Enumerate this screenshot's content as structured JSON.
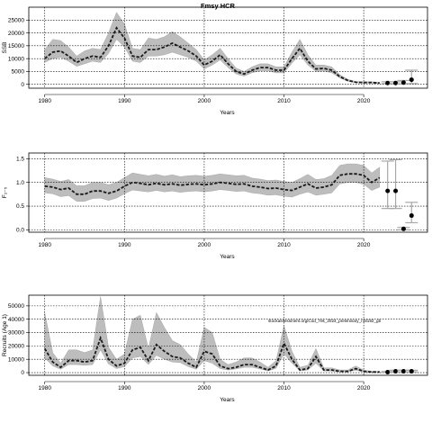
{
  "figure": {
    "title": "Fmsy HCR",
    "watermark": "stockassessment.org/Cod_7ek_2024_preliminary_r18192_gb"
  },
  "chart_data": [
    {
      "type": "line",
      "name": "ssb",
      "ylabel": "SSB",
      "xlabel": "Years",
      "xlim": [
        1978,
        2028
      ],
      "ylim": [
        -1500,
        30000
      ],
      "xticks": [
        1980,
        1990,
        2000,
        2010,
        2020
      ],
      "yticks": [
        0,
        5000,
        10000,
        15000,
        20000,
        25000
      ],
      "grid": true,
      "years": [
        1980,
        1981,
        1982,
        1983,
        1984,
        1985,
        1986,
        1987,
        1988,
        1989,
        1990,
        1991,
        1992,
        1993,
        1994,
        1995,
        1996,
        1997,
        1998,
        1999,
        2000,
        2001,
        2002,
        2003,
        2004,
        2005,
        2006,
        2007,
        2008,
        2009,
        2010,
        2011,
        2012,
        2013,
        2014,
        2015,
        2016,
        2017,
        2018,
        2019,
        2020,
        2021,
        2022
      ],
      "values": [
        10000,
        12500,
        13000,
        11000,
        8500,
        10000,
        11000,
        10500,
        15000,
        22000,
        18000,
        11000,
        10500,
        13500,
        13500,
        14500,
        16000,
        14500,
        13000,
        11000,
        7500,
        9000,
        11500,
        8000,
        5000,
        4000,
        5500,
        6500,
        6500,
        5500,
        5500,
        10000,
        14000,
        9000,
        6000,
        6200,
        5500,
        3000,
        1500,
        800,
        700,
        700,
        500
      ],
      "lower": [
        8500,
        10000,
        10500,
        9000,
        7000,
        8000,
        9000,
        8500,
        12000,
        17500,
        14500,
        9000,
        8500,
        11000,
        11000,
        11500,
        12500,
        11500,
        10500,
        9000,
        6000,
        7500,
        9500,
        6500,
        4000,
        3200,
        4500,
        5300,
        5300,
        4500,
        4500,
        8200,
        11500,
        7500,
        5000,
        5200,
        4500,
        2500,
        1200,
        600,
        500,
        500,
        300
      ],
      "upper": [
        13500,
        17500,
        17000,
        14500,
        11000,
        13000,
        14000,
        13500,
        20000,
        28000,
        23500,
        14000,
        13500,
        18000,
        17500,
        18500,
        20500,
        18500,
        16000,
        13500,
        9500,
        11500,
        14000,
        10000,
        6300,
        5000,
        6800,
        8000,
        8000,
        6800,
        6800,
        12500,
        17500,
        11500,
        7500,
        7500,
        6800,
        3800,
        2000,
        1100,
        1000,
        1000,
        800
      ],
      "forecast": {
        "years": [
          2023,
          2024,
          2025,
          2026
        ],
        "values": [
          500,
          500,
          700,
          1800
        ],
        "lower": [
          300,
          200,
          200,
          300
        ],
        "upper": [
          1000,
          1000,
          1500,
          5500
        ]
      }
    },
    {
      "type": "line",
      "name": "fbar",
      "ylabel": "F₂₋₅",
      "xlabel": "Years",
      "xlim": [
        1978,
        2028
      ],
      "ylim": [
        -0.05,
        1.62
      ],
      "xticks": [
        1980,
        1990,
        2000,
        2010,
        2020
      ],
      "yticks": [
        0.0,
        0.5,
        1.0,
        1.5
      ],
      "ytick_labels": [
        "0.0",
        "0.5",
        "1.0",
        "1.5"
      ],
      "grid": true,
      "years": [
        1980,
        1981,
        1982,
        1983,
        1984,
        1985,
        1986,
        1987,
        1988,
        1989,
        1990,
        1991,
        1992,
        1993,
        1994,
        1995,
        1996,
        1997,
        1998,
        1999,
        2000,
        2001,
        2002,
        2003,
        2004,
        2005,
        2006,
        2007,
        2008,
        2009,
        2010,
        2011,
        2012,
        2013,
        2014,
        2015,
        2016,
        2017,
        2018,
        2019,
        2020,
        2021,
        2022
      ],
      "values": [
        0.92,
        0.9,
        0.85,
        0.88,
        0.75,
        0.75,
        0.82,
        0.82,
        0.77,
        0.82,
        0.92,
        1.0,
        0.98,
        0.95,
        0.98,
        0.95,
        0.97,
        0.94,
        0.96,
        0.97,
        0.95,
        0.97,
        1.0,
        0.98,
        0.96,
        0.97,
        0.92,
        0.9,
        0.87,
        0.88,
        0.85,
        0.83,
        0.9,
        0.97,
        0.88,
        0.9,
        0.95,
        1.15,
        1.18,
        1.18,
        1.15,
        1.0,
        1.1
      ],
      "lower": [
        0.78,
        0.76,
        0.7,
        0.72,
        0.6,
        0.6,
        0.66,
        0.67,
        0.62,
        0.67,
        0.76,
        0.84,
        0.82,
        0.8,
        0.83,
        0.8,
        0.82,
        0.79,
        0.81,
        0.82,
        0.8,
        0.82,
        0.85,
        0.83,
        0.81,
        0.82,
        0.78,
        0.76,
        0.73,
        0.74,
        0.71,
        0.69,
        0.75,
        0.8,
        0.73,
        0.75,
        0.78,
        0.97,
        1.0,
        1.0,
        0.96,
        0.83,
        0.9
      ],
      "upper": [
        1.1,
        1.07,
        1.02,
        1.06,
        0.93,
        0.93,
        1.0,
        1.0,
        0.95,
        1.0,
        1.1,
        1.2,
        1.17,
        1.14,
        1.17,
        1.13,
        1.16,
        1.12,
        1.14,
        1.15,
        1.13,
        1.15,
        1.18,
        1.16,
        1.14,
        1.15,
        1.09,
        1.07,
        1.04,
        1.05,
        1.02,
        1.0,
        1.08,
        1.17,
        1.06,
        1.08,
        1.15,
        1.36,
        1.39,
        1.39,
        1.36,
        1.2,
        1.32
      ],
      "forecast": {
        "years": [
          2023,
          2024,
          2025,
          2026
        ],
        "values": [
          0.82,
          0.82,
          0.02,
          0.3
        ],
        "lower": [
          0.45,
          0.45,
          0.0,
          0.15
        ],
        "upper": [
          1.45,
          1.48,
          0.05,
          0.58
        ]
      }
    },
    {
      "type": "line",
      "name": "recruitment",
      "ylabel": "Recruits (Age 1)",
      "xlabel": "Years",
      "xlim": [
        1978,
        2028
      ],
      "ylim": [
        -2000,
        58000
      ],
      "xticks": [
        1980,
        1990,
        2000,
        2010,
        2020
      ],
      "yticks": [
        0,
        10000,
        20000,
        30000,
        40000,
        50000
      ],
      "grid": true,
      "years": [
        1980,
        1981,
        1982,
        1983,
        1984,
        1985,
        1986,
        1987,
        1988,
        1989,
        1990,
        1991,
        1992,
        1993,
        1994,
        1995,
        1996,
        1997,
        1998,
        1999,
        2000,
        2001,
        2002,
        2003,
        2004,
        2005,
        2006,
        2007,
        2008,
        2009,
        2010,
        2011,
        2012,
        2013,
        2014,
        2015,
        2016,
        2017,
        2018,
        2019,
        2020,
        2021,
        2022
      ],
      "values": [
        18000,
        8000,
        4000,
        9000,
        9000,
        8000,
        9000,
        26000,
        10000,
        5000,
        7000,
        17000,
        19000,
        9000,
        21000,
        16000,
        12000,
        11000,
        7000,
        4000,
        16000,
        14000,
        5000,
        3000,
        4000,
        6000,
        6000,
        4000,
        2000,
        5000,
        22000,
        10000,
        2000,
        3000,
        12000,
        2000,
        2000,
        1000,
        1000,
        3000,
        1000,
        500,
        500
      ],
      "lower": [
        11000,
        5000,
        2500,
        6000,
        6000,
        5500,
        6000,
        17000,
        6500,
        3000,
        4500,
        11000,
        12000,
        6000,
        13000,
        10000,
        8000,
        7500,
        4500,
        2500,
        9000,
        7000,
        3000,
        2000,
        2800,
        4000,
        4000,
        2800,
        1300,
        3200,
        14000,
        7000,
        1300,
        2000,
        7000,
        1200,
        1200,
        600,
        600,
        1800,
        600,
        300,
        300
      ],
      "upper": [
        45000,
        15000,
        7000,
        17000,
        17000,
        15000,
        17000,
        57000,
        19000,
        10000,
        14000,
        40000,
        43000,
        18000,
        45000,
        34000,
        24000,
        21000,
        14000,
        8000,
        34000,
        30000,
        10000,
        6000,
        8000,
        11000,
        11000,
        8000,
        4000,
        9000,
        35000,
        16000,
        4000,
        5500,
        18000,
        3500,
        3500,
        2000,
        2000,
        5000,
        2000,
        1000,
        1000
      ],
      "forecast": {
        "years": [
          2023,
          2024,
          2025,
          2026
        ],
        "values": [
          400,
          1000,
          1000,
          1000
        ],
        "lower": [
          200,
          600,
          600,
          600
        ],
        "upper": [
          800,
          1800,
          1800,
          1800
        ]
      }
    }
  ]
}
